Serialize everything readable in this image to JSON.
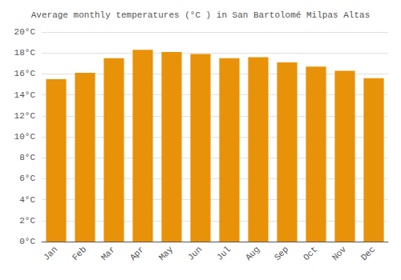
{
  "chart_data": {
    "type": "bar",
    "title": "Average monthly temperatures (°C ) in San Bartolomé Milpas Altas",
    "categories": [
      "Jan",
      "Feb",
      "Mar",
      "Apr",
      "May",
      "Jun",
      "Jul",
      "Aug",
      "Sep",
      "Oct",
      "Nov",
      "Dec"
    ],
    "values": [
      15.5,
      16.1,
      17.5,
      18.3,
      18.1,
      17.9,
      17.5,
      17.6,
      17.1,
      16.7,
      16.3,
      15.6
    ],
    "color": "#E8920A",
    "ylim": [
      0,
      20
    ],
    "yticks": [
      {
        "value": 0,
        "label": "0°C"
      },
      {
        "value": 2,
        "label": "2°C"
      },
      {
        "value": 4,
        "label": "4°C"
      },
      {
        "value": 6,
        "label": "6°C"
      },
      {
        "value": 8,
        "label": "8°C"
      },
      {
        "value": 10,
        "label": "10°C"
      },
      {
        "value": 12,
        "label": "12°C"
      },
      {
        "value": 14,
        "label": "14°C"
      },
      {
        "value": 16,
        "label": "16°C"
      },
      {
        "value": 18,
        "label": "18°C"
      },
      {
        "value": 20,
        "label": "20°C"
      }
    ],
    "grid": true
  }
}
